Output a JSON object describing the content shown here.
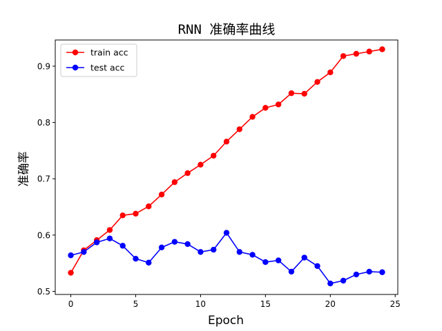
{
  "chart_data": {
    "type": "line",
    "title": "RNN 准确率曲线",
    "xlabel": "Epoch",
    "ylabel": "准确率",
    "x": [
      0,
      1,
      2,
      3,
      4,
      5,
      6,
      7,
      8,
      9,
      10,
      11,
      12,
      13,
      14,
      15,
      16,
      17,
      18,
      19,
      20,
      21,
      22,
      23,
      24
    ],
    "xlim": [
      -1.2,
      25.2
    ],
    "ylim": [
      0.4945,
      0.9465
    ],
    "xticks": [
      0,
      5,
      10,
      15,
      20,
      25
    ],
    "yticks": [
      0.5,
      0.6,
      0.7,
      0.8,
      0.9
    ],
    "xtick_labels": [
      "0",
      "5",
      "10",
      "15",
      "20",
      "25"
    ],
    "ytick_labels": [
      "0.5",
      "0.6",
      "0.7",
      "0.8",
      "0.9"
    ],
    "grid": false,
    "legend_position": "top-left",
    "series": [
      {
        "name": "train acc",
        "color": "#ff0000",
        "marker": "circle",
        "values": [
          0.533,
          0.573,
          0.591,
          0.609,
          0.635,
          0.638,
          0.651,
          0.672,
          0.694,
          0.71,
          0.725,
          0.741,
          0.766,
          0.788,
          0.81,
          0.826,
          0.832,
          0.852,
          0.851,
          0.872,
          0.889,
          0.918,
          0.922,
          0.926,
          0.93
        ]
      },
      {
        "name": "test acc",
        "color": "#0000ff",
        "marker": "circle",
        "values": [
          0.564,
          0.57,
          0.587,
          0.594,
          0.581,
          0.558,
          0.551,
          0.578,
          0.588,
          0.584,
          0.57,
          0.574,
          0.604,
          0.57,
          0.565,
          0.552,
          0.555,
          0.535,
          0.56,
          0.545,
          0.514,
          0.519,
          0.53,
          0.535,
          0.534
        ]
      }
    ]
  }
}
